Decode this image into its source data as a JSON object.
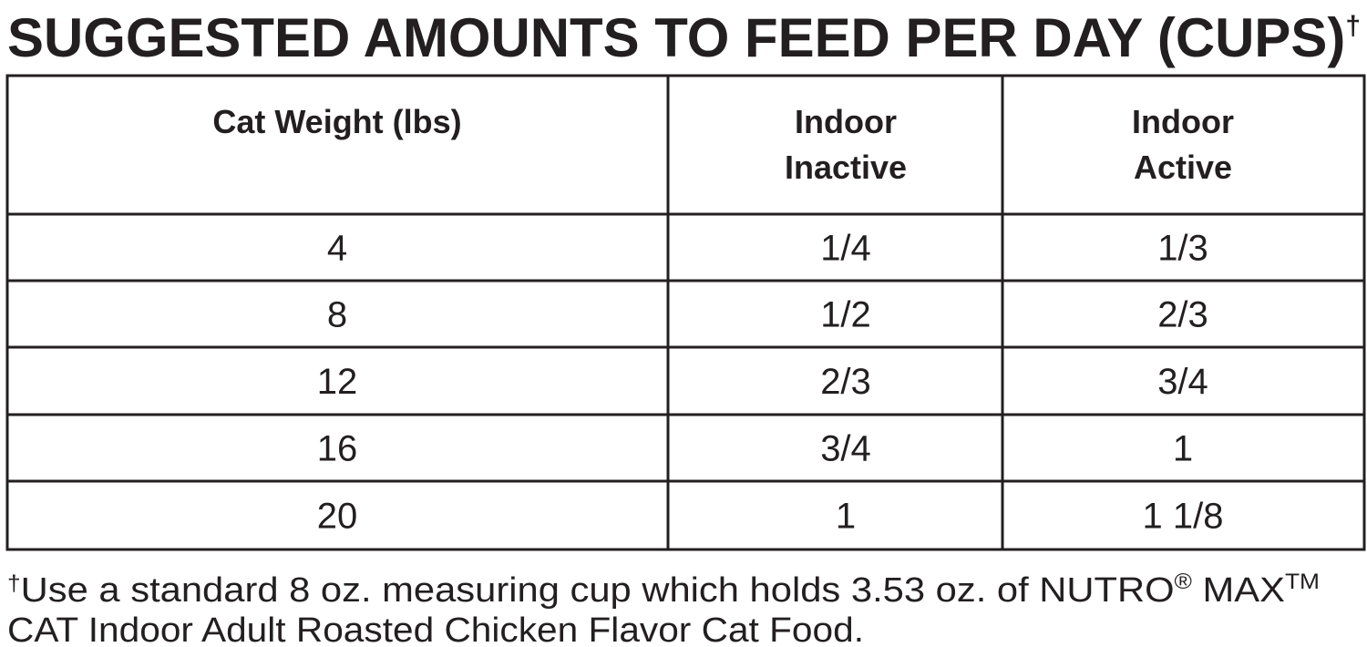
{
  "title": {
    "text": "SUGGESTED AMOUNTS TO FEED PER DAY (CUPS)",
    "mark": "†"
  },
  "table": {
    "header": [
      [
        "Cat Weight (lbs)"
      ],
      [
        "Indoor",
        "Inactive"
      ],
      [
        "Indoor",
        "Active"
      ]
    ],
    "rows": [
      [
        "4",
        "1/4",
        "1/3"
      ],
      [
        "8",
        "1/2",
        "2/3"
      ],
      [
        "12",
        "2/3",
        "3/4"
      ],
      [
        "16",
        "3/4",
        "1"
      ],
      [
        "20",
        "1",
        "1 1/8"
      ]
    ]
  },
  "footnote": {
    "mark": "†",
    "line1": "Use a standard 8 oz. measuring cup which holds 3.53 oz. of NUTRO",
    "registered": "®",
    "brand": " MAX",
    "trademark": "TM",
    "line2": "CAT Indoor Adult Roasted Chicken Flavor Cat Food."
  }
}
